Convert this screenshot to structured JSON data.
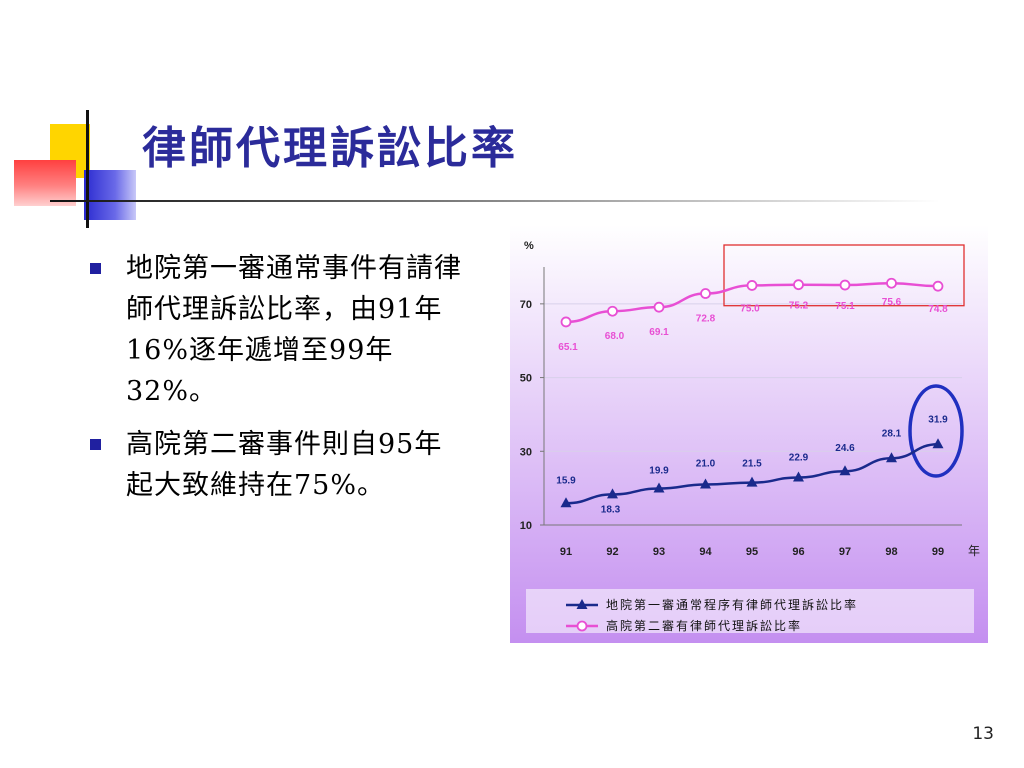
{
  "slide": {
    "title": "律師代理訴訟比率",
    "bullets": [
      "地院第一審通常事件有請律師代理訴訟比率，由91年16%逐年遞增至99年32%。",
      "高院第二審事件則自95年起大致維持在75%。"
    ],
    "page_number": "13"
  },
  "colors": {
    "title": "#2b2b9a",
    "bullet_marker": "#2020a0",
    "series_district": "#1a2a8c",
    "series_high": "#e84fd4",
    "highlight_rect": "#e03030",
    "highlight_circle": "#2030c0",
    "plot_bg_top": "#ffffff",
    "plot_bg_bottom": "#c48ff0"
  },
  "chart_data": {
    "type": "line",
    "categories": [
      "91",
      "92",
      "93",
      "94",
      "95",
      "96",
      "97",
      "98",
      "99"
    ],
    "ylabel": "%",
    "xlabel": "年",
    "yticks": [
      10,
      30,
      50,
      70
    ],
    "ylim": [
      10,
      80
    ],
    "series": [
      {
        "name": "地院第一審通常程序有律師代理訴訟比率",
        "marker": "triangle",
        "color": "#1a2a8c",
        "values": [
          15.9,
          18.3,
          19.9,
          21.0,
          21.5,
          22.9,
          24.6,
          28.1,
          31.9
        ],
        "labels": [
          "15.9",
          "18.3",
          "19.9",
          "21.0",
          "21.5",
          "22.9",
          "24.6",
          "28.1",
          "31.9"
        ]
      },
      {
        "name": "高院第二審有律師代理訴訟比率",
        "marker": "circle",
        "color": "#e84fd4",
        "values": [
          65.1,
          68.0,
          69.1,
          72.8,
          75.0,
          75.2,
          75.1,
          75.6,
          74.8
        ],
        "labels": [
          "65.1",
          "68.0",
          "69.1",
          "72.8",
          "75.0",
          "75.2",
          "75.1",
          "75.6",
          "74.8"
        ]
      }
    ],
    "legend_position": "bottom"
  }
}
